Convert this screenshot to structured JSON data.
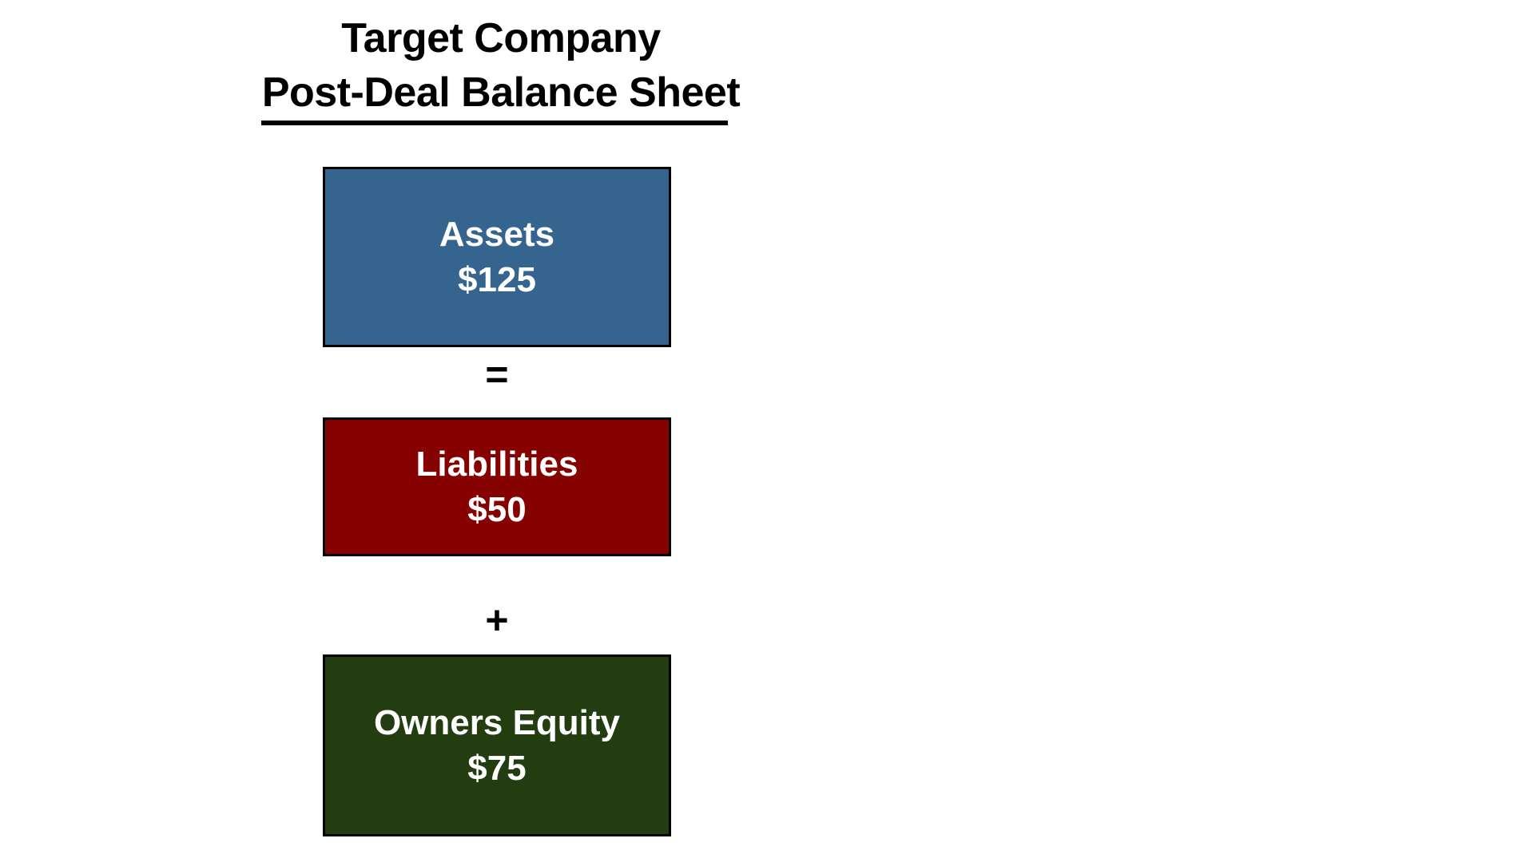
{
  "slide": {
    "title": {
      "line1": "Target Company",
      "line2": "Post-Deal Balance Sheet"
    },
    "equation": {
      "boxes": [
        {
          "id": "assets",
          "label": "Assets",
          "value": "$125",
          "fill": "#35648E"
        },
        {
          "id": "liabilities",
          "label": "Liabilities",
          "value": "$50",
          "fill": "#850200"
        },
        {
          "id": "equity",
          "label": "Owners Equity",
          "value": "$75",
          "fill": "#233C10"
        }
      ],
      "operators": [
        {
          "id": "equals",
          "symbol": "="
        },
        {
          "id": "plus",
          "symbol": "+"
        }
      ]
    },
    "colors": {
      "background": "#FFFFFF",
      "title_text": "#000000",
      "box_border": "#000000",
      "box_text": "#FFFFFF",
      "operator_text": "#000000"
    }
  }
}
